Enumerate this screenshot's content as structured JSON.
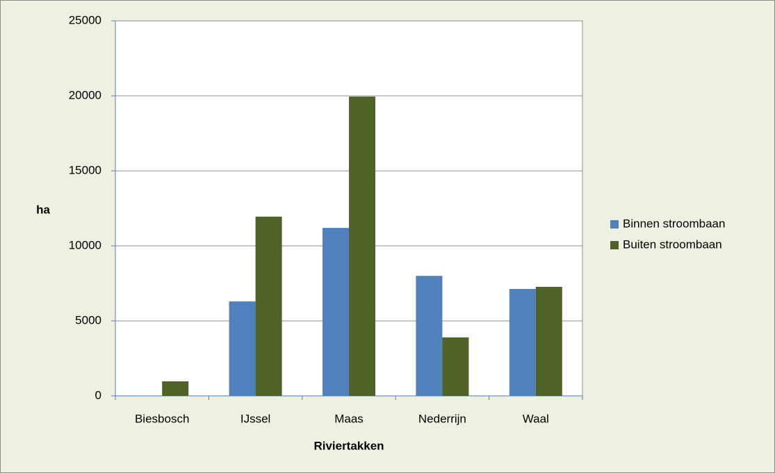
{
  "chart_data": {
    "type": "bar",
    "x_label": "Riviertakken",
    "y_label": "ha",
    "categories": [
      "Biesbosch",
      "IJssel",
      "Maas",
      "Nederrijn",
      "Waal"
    ],
    "series": [
      {
        "name": "Binnen stroombaan",
        "color": "#4f81bd",
        "values": [
          0,
          6300,
          11200,
          8000,
          7130
        ]
      },
      {
        "name": "Buiten stroombaan",
        "color": "#4f6228",
        "values": [
          970,
          11950,
          19950,
          3900,
          7270
        ]
      }
    ],
    "ylim": [
      0,
      25000
    ],
    "yticks": [
      0,
      5000,
      10000,
      15000,
      20000,
      25000
    ],
    "grid": true,
    "legend": "right"
  }
}
